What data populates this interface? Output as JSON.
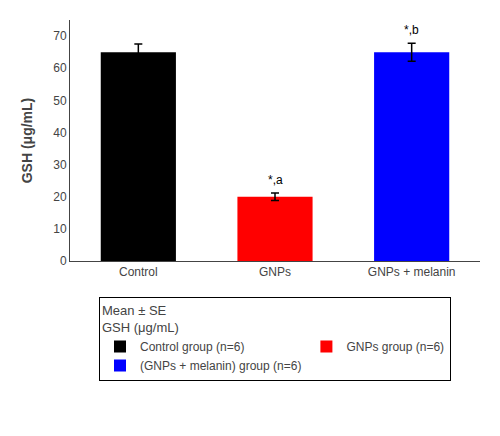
{
  "chart_data": {
    "type": "bar",
    "categories": [
      "Control",
      "GNPs",
      "GNPs + melanin"
    ],
    "series": [
      {
        "name": "Control group (n=6)",
        "color": "#000000",
        "values": [
          65.0,
          null,
          null
        ],
        "errors": [
          2.5,
          null,
          null
        ]
      },
      {
        "name": "GNPs group (n=6)",
        "color": "#ff0000",
        "values": [
          null,
          20.0,
          null
        ],
        "errors": [
          null,
          1.2,
          null
        ]
      },
      {
        "name": "(GNPs + melanin) group (n=6)",
        "color": "#0000ff",
        "values": [
          null,
          null,
          65.0
        ],
        "errors": [
          null,
          null,
          2.8
        ]
      }
    ],
    "annotations": [
      null,
      "*,a",
      "*,b"
    ],
    "ylabel": "GSH (μg/mL)",
    "ylim": [
      0,
      75
    ],
    "yticks": [
      0,
      10,
      20,
      30,
      40,
      50,
      60,
      70
    ],
    "legend": "bottom",
    "legend_title": [
      "Mean ± SE",
      "GSH (μg/mL)"
    ],
    "grid": false
  }
}
